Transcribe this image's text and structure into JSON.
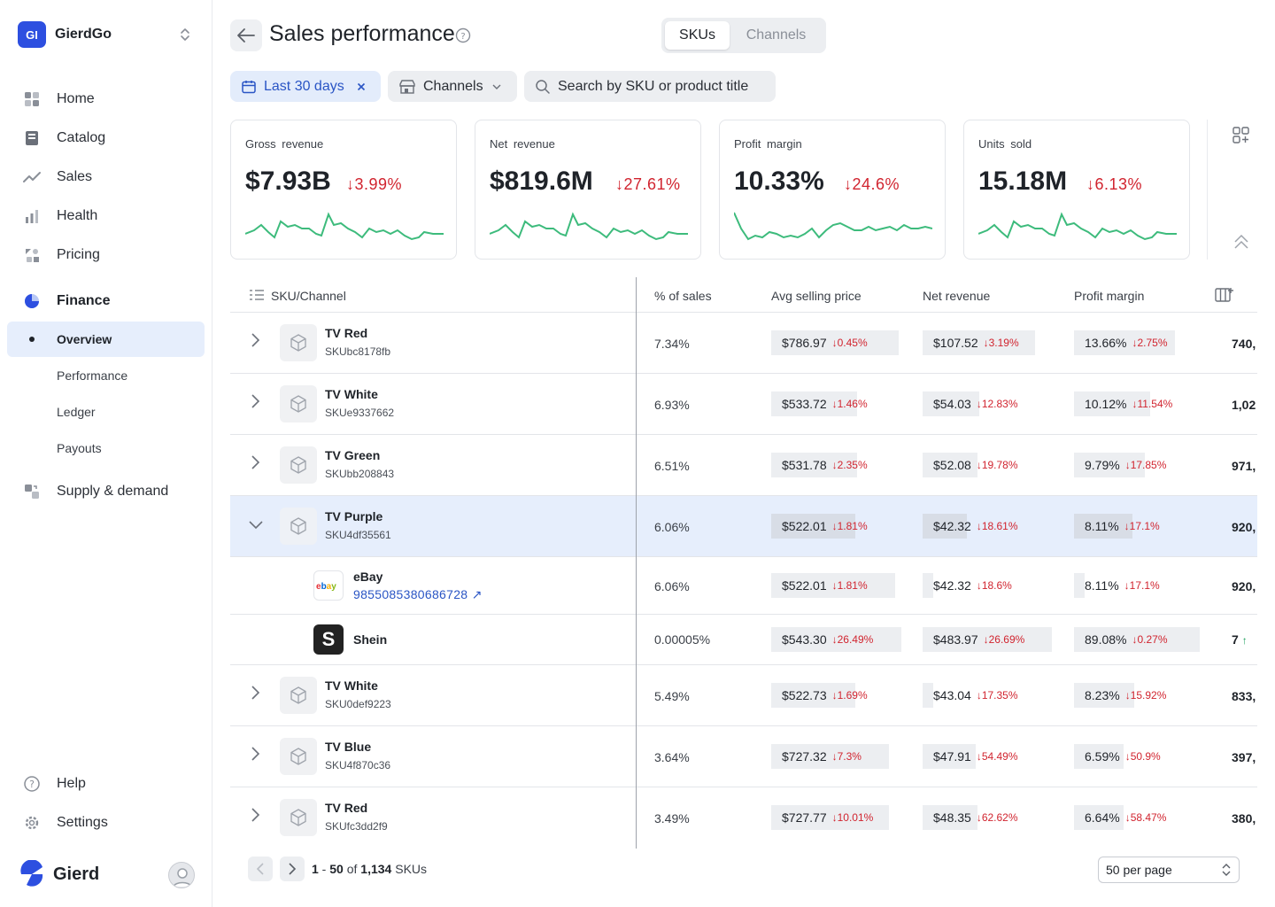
{
  "workspace": {
    "badge": "GI",
    "name": "GierdGo"
  },
  "nav": {
    "home": "Home",
    "catalog": "Catalog",
    "sales": "Sales",
    "health": "Health",
    "pricing": "Pricing",
    "finance": "Finance",
    "overview": "Overview",
    "performance": "Performance",
    "ledger": "Ledger",
    "payouts": "Payouts",
    "supply": "Supply & demand",
    "help": "Help",
    "settings": "Settings"
  },
  "brand": {
    "name": "Gierd"
  },
  "header": {
    "title": "Sales performance",
    "tab_skus": "SKUs",
    "tab_channels": "Channels"
  },
  "filters": {
    "date": "Last 30 days",
    "channels": "Channels",
    "search_placeholder": "Search by SKU or product title"
  },
  "kpis": [
    {
      "label": "Gross revenue",
      "value": "$7.93B",
      "delta": "3.99%"
    },
    {
      "label": "Net revenue",
      "value": "$819.6M",
      "delta": "27.61%"
    },
    {
      "label": "Profit margin",
      "value": "10.33%",
      "delta": "24.6%"
    },
    {
      "label": "Units sold",
      "value": "15.18M",
      "delta": "6.13%"
    }
  ],
  "table": {
    "headers": {
      "sku": "SKU/Channel",
      "pct": "% of sales",
      "asp": "Avg selling price",
      "net": "Net revenue",
      "margin": "Profit margin"
    },
    "rows": [
      {
        "name": "TV Red",
        "sku": "SKUbc8178fb",
        "pct": "7.34%",
        "asp": "$786.97",
        "asp_d": "0.45%",
        "net": "$107.52",
        "net_d": "3.19%",
        "pm": "13.66%",
        "pm_d": "2.75%",
        "units": "740,"
      },
      {
        "name": "TV White",
        "sku": "SKUe9337662",
        "pct": "6.93%",
        "asp": "$533.72",
        "asp_d": "1.46%",
        "net": "$54.03",
        "net_d": "12.83%",
        "pm": "10.12%",
        "pm_d": "11.54%",
        "units": "1,02"
      },
      {
        "name": "TV Green",
        "sku": "SKUbb208843",
        "pct": "6.51%",
        "asp": "$531.78",
        "asp_d": "2.35%",
        "net": "$52.08",
        "net_d": "19.78%",
        "pm": "9.79%",
        "pm_d": "17.85%",
        "units": "971,"
      },
      {
        "name": "TV Purple",
        "sku": "SKU4df35561",
        "pct": "6.06%",
        "asp": "$522.01",
        "asp_d": "1.81%",
        "net": "$42.32",
        "net_d": "18.61%",
        "pm": "8.11%",
        "pm_d": "17.1%",
        "units": "920,"
      },
      {
        "name": "TV White",
        "sku": "SKU0def9223",
        "pct": "5.49%",
        "asp": "$522.73",
        "asp_d": "1.69%",
        "net": "$43.04",
        "net_d": "17.35%",
        "pm": "8.23%",
        "pm_d": "15.92%",
        "units": "833,"
      },
      {
        "name": "TV Blue",
        "sku": "SKU4f870c36",
        "pct": "3.64%",
        "asp": "$727.32",
        "asp_d": "7.3%",
        "net": "$47.91",
        "net_d": "54.49%",
        "pm": "6.59%",
        "pm_d": "50.9%",
        "units": "397,"
      },
      {
        "name": "TV Red",
        "sku": "SKUfc3dd2f9",
        "pct": "3.49%",
        "asp": "$727.77",
        "asp_d": "10.01%",
        "net": "$48.35",
        "net_d": "62.62%",
        "pm": "6.64%",
        "pm_d": "58.47%",
        "units": "380,"
      }
    ],
    "channels": [
      {
        "name": "eBay",
        "link": "9855085380686728",
        "logo": "ebay",
        "pct": "6.06%",
        "asp": "$522.01",
        "asp_d": "1.81%",
        "net": "$42.32",
        "net_d": "18.6%",
        "pm": "8.11%",
        "pm_d": "17.1%",
        "units": "920,"
      },
      {
        "name": "Shein",
        "logo": "S",
        "pct": "0.00005%",
        "asp": "$543.30",
        "asp_d": "26.49%",
        "net": "$483.97",
        "net_d": "26.69%",
        "pm": "89.08%",
        "pm_d": "0.27%",
        "units": "7"
      }
    ]
  },
  "pager": {
    "from": "1",
    "to": "50",
    "of": "of",
    "total": "1,134",
    "unit": "SKUs",
    "per_page": "50 per page"
  },
  "colors": {
    "accent": "#2d4fe0",
    "negative": "#d1242f",
    "positive": "#1a9e5a",
    "spark": "#3dbb7c",
    "selected_row": "#e6eefc"
  }
}
